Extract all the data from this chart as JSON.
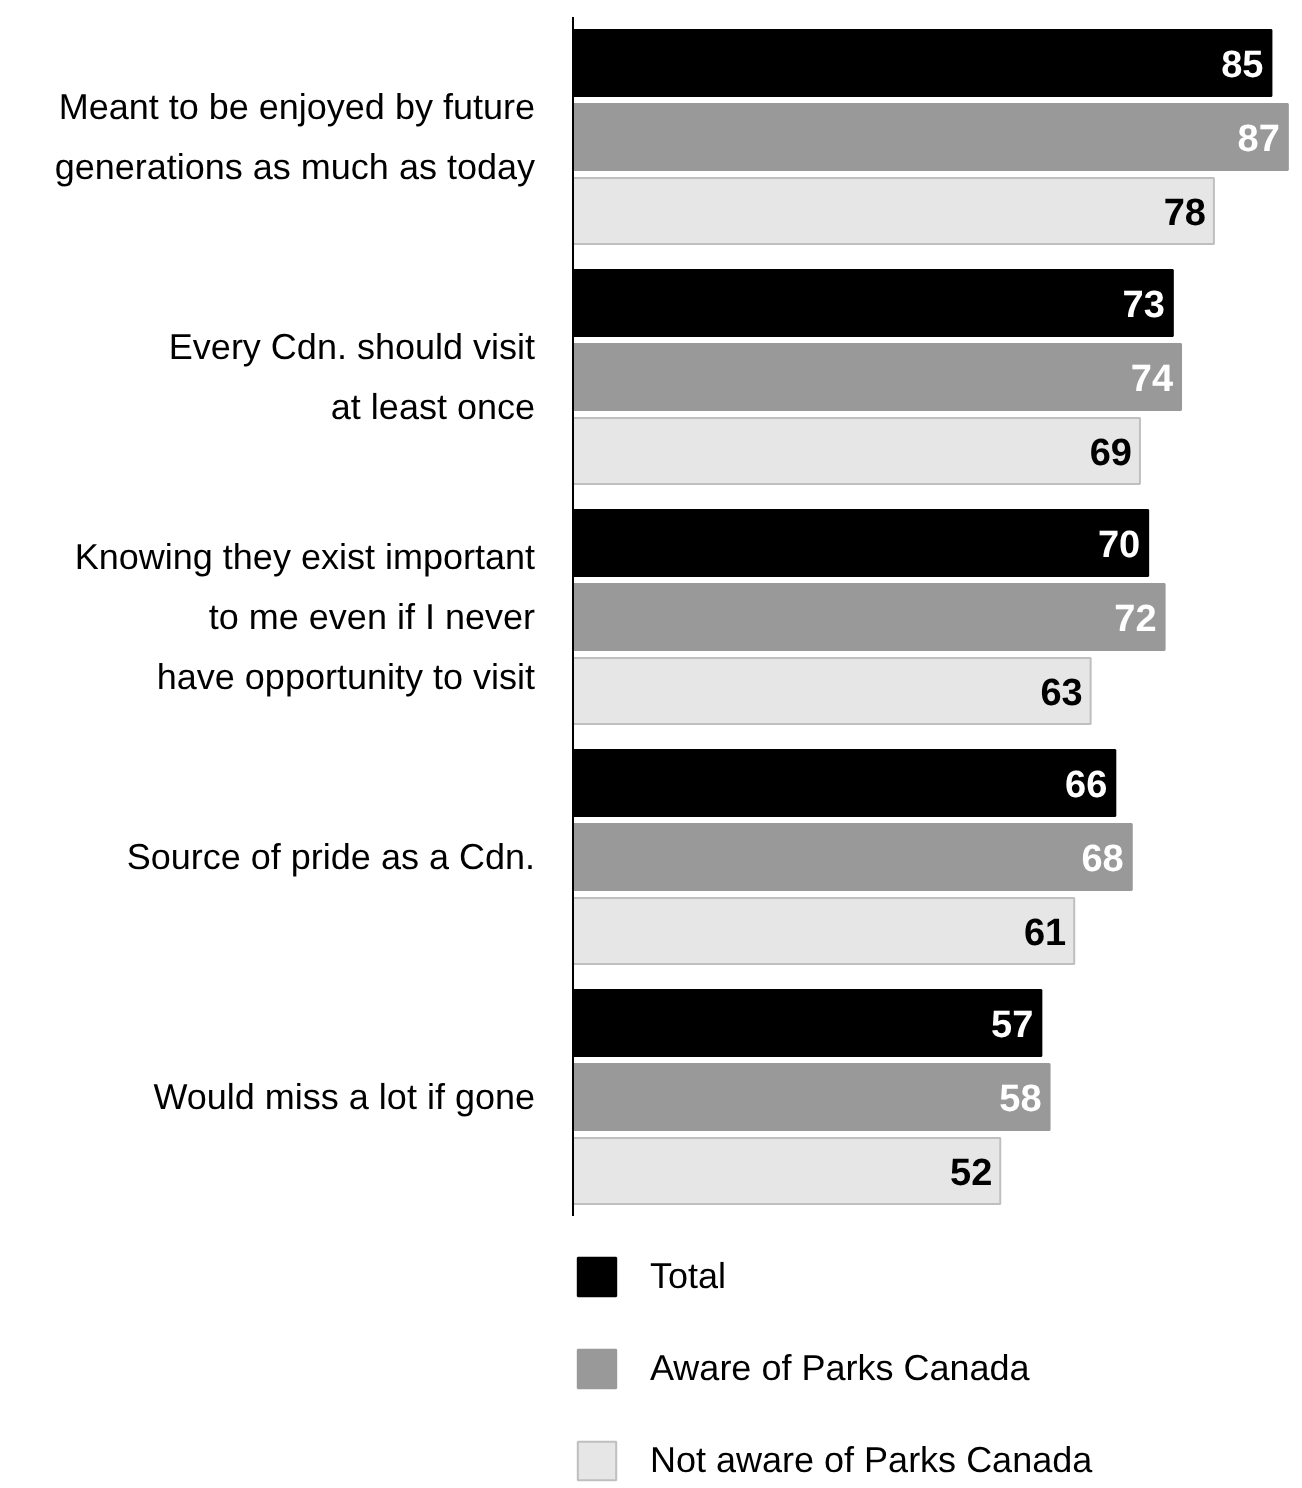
{
  "chart_data": {
    "type": "bar",
    "orientation": "horizontal",
    "categories": [
      "Meant to be enjoyed by future\ngenerations as much as today",
      "Every Cdn. should visit\nat least once",
      "Knowing they exist important\nto me even if I never\nhave opportunity to visit",
      "Source of pride as a Cdn.",
      "Would miss a lot if gone"
    ],
    "series": [
      {
        "name": "Total",
        "color": "#000000",
        "values": [
          85,
          73,
          70,
          66,
          57
        ]
      },
      {
        "name": "Aware of Parks Canada",
        "color": "#999999",
        "values": [
          87,
          74,
          72,
          68,
          58
        ]
      },
      {
        "name": "Not aware of Parks Canada",
        "color": "#e6e6e6",
        "values": [
          78,
          69,
          63,
          61,
          52
        ]
      }
    ],
    "data_labels": true,
    "legend": "bottom",
    "grid": false,
    "tick_labels": "y"
  }
}
